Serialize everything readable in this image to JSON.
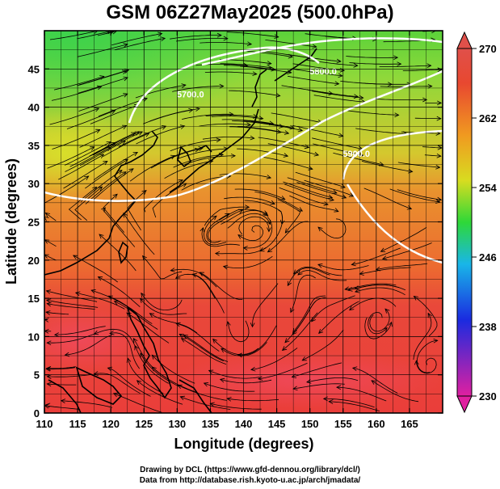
{
  "title": "GSM 06Z27May2025 (500.0hPa)",
  "map": {
    "xlabel": "Longitude (degrees)",
    "ylabel": "Latitude (degrees)",
    "lon_range": [
      110,
      170
    ],
    "lat_range": [
      0,
      50
    ],
    "lon_ticks": [
      110,
      115,
      120,
      125,
      130,
      135,
      140,
      145,
      150,
      155,
      160,
      165
    ],
    "lat_ticks": [
      0,
      5,
      10,
      15,
      20,
      25,
      30,
      35,
      40,
      45
    ],
    "contours": [
      {
        "label": "5700.0",
        "lon": 132,
        "lat": 41.3
      },
      {
        "label": "5800.0",
        "lon": 152,
        "lat": 44.3
      },
      {
        "label": "5900.0",
        "lon": 157,
        "lat": 33.5
      }
    ],
    "grid": true
  },
  "colorbar": {
    "labels": [
      "270",
      "262",
      "254",
      "246",
      "238",
      "230"
    ],
    "values": [
      270,
      262,
      254,
      246,
      238,
      230
    ],
    "range": [
      230,
      270
    ],
    "colors": {
      "low": "#e0209a",
      "blue": "#1a2be0",
      "cyan": "#19b6e8",
      "green": "#3ad43a",
      "yellow": "#e4e420",
      "orange": "#f08a20",
      "red": "#e63a2e",
      "high": "#e0504a"
    }
  },
  "credit": {
    "line1": "Drawing by DCL (https://www.gfd-dennou.org/library/dcl/)",
    "line2": "Data from http://database.rish.kyoto-u.ac.jp/arch/jmadata/"
  }
}
